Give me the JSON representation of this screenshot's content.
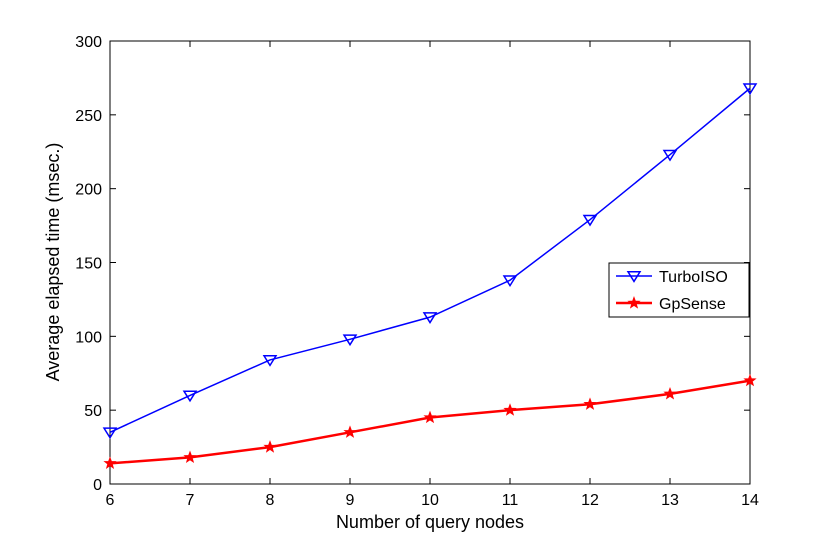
{
  "chart_data": {
    "type": "line",
    "title": "",
    "xlabel": "Number of query nodes",
    "ylabel": "Average elapsed time (msec.)",
    "x": [
      6,
      7,
      8,
      9,
      10,
      11,
      12,
      13,
      14
    ],
    "xlim": [
      6,
      14
    ],
    "ylim": [
      0,
      300
    ],
    "xticks": [
      "6",
      "7",
      "8",
      "9",
      "10",
      "11",
      "12",
      "13",
      "14"
    ],
    "yticks": [
      "0",
      "50",
      "100",
      "150",
      "200",
      "250",
      "300"
    ],
    "grid": false,
    "legend_position": "right",
    "series": [
      {
        "name": "TurboISO",
        "color": "#0000ff",
        "marker": "triangle-down",
        "values": [
          35,
          60,
          84,
          98,
          113,
          138,
          179,
          223,
          268
        ]
      },
      {
        "name": "GpSense",
        "color": "#ff0000",
        "marker": "star",
        "values": [
          14,
          18,
          25,
          35,
          45,
          50,
          54,
          61,
          70
        ]
      }
    ]
  }
}
